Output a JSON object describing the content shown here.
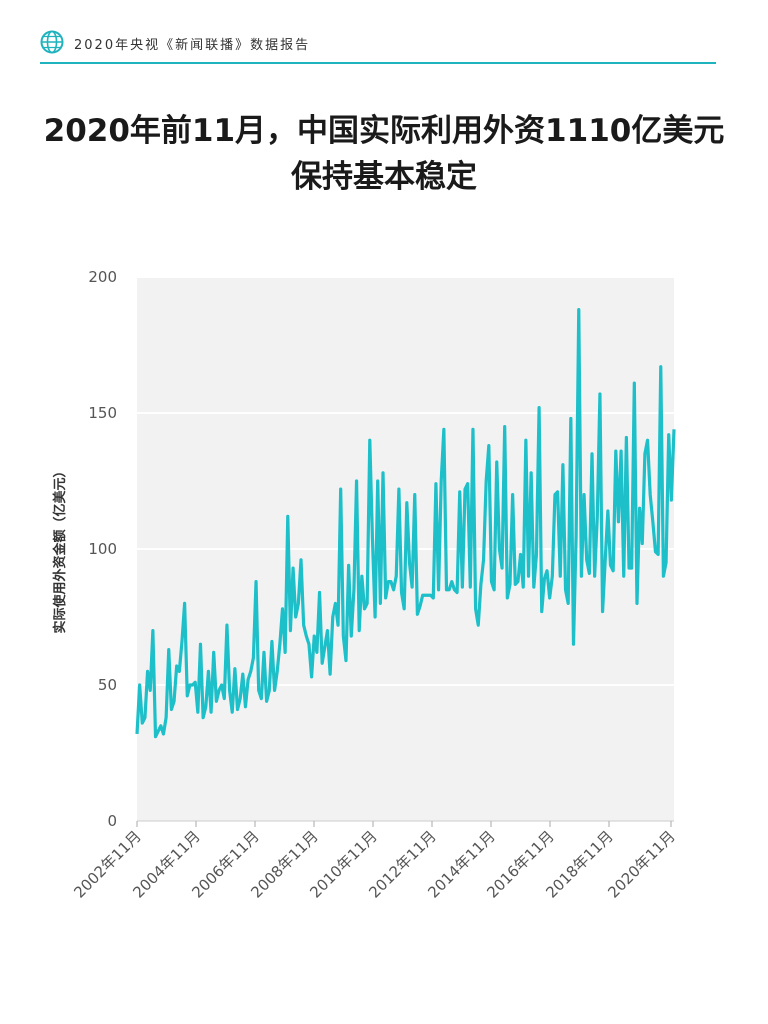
{
  "header": {
    "brand": "2020年央视《新闻联播》数据报告",
    "logo_icon": "globe-icon",
    "accent": "#1fb3be"
  },
  "title": {
    "line1": "2020年前11月，中国实际利用外资1110亿美元",
    "line2": "保持基本稳定"
  },
  "chart_data": {
    "type": "line",
    "ylabel": "实际使用外资金额（亿美元）",
    "ylim": [
      0,
      200
    ],
    "yticks": [
      0,
      50,
      100,
      150,
      200
    ],
    "xticks": [
      "2002年11月",
      "2004年11月",
      "2006年11月",
      "2008年11月",
      "2010年11月",
      "2012年11月",
      "2014年11月",
      "2016年11月",
      "2018年11月",
      "2020年11月"
    ],
    "grid": true,
    "line_color": "#1dbfc9",
    "plot_background": "#f2f2f2",
    "x_start": "2002年11月",
    "values": [
      32,
      50,
      36,
      38,
      55,
      48,
      70,
      31,
      33,
      35,
      32,
      38,
      63,
      41,
      44,
      57,
      55,
      66,
      80,
      46,
      50,
      50,
      51,
      40,
      65,
      38,
      42,
      55,
      40,
      62,
      44,
      48,
      50,
      45,
      72,
      48,
      40,
      56,
      41,
      45,
      54,
      42,
      52,
      55,
      60,
      88,
      48,
      45,
      62,
      44,
      48,
      66,
      48,
      55,
      65,
      78,
      62,
      112,
      70,
      93,
      75,
      80,
      96,
      72,
      68,
      65,
      53,
      68,
      62,
      84,
      58,
      64,
      70,
      54,
      75,
      80,
      72,
      122,
      68,
      59,
      94,
      68,
      85,
      125,
      70,
      90,
      78,
      80,
      140,
      104,
      75,
      125,
      80,
      128,
      82,
      88,
      88,
      85,
      90,
      122,
      84,
      78,
      117,
      95,
      86,
      120,
      76,
      79,
      83,
      83,
      83,
      83,
      82,
      124,
      85,
      125,
      144,
      85,
      85,
      88,
      85,
      84,
      121,
      86,
      122,
      124,
      86,
      144,
      78,
      72,
      87,
      96,
      125,
      138,
      88,
      85,
      132,
      100,
      93,
      145,
      82,
      87,
      120,
      87,
      88,
      98,
      86,
      140,
      90,
      128,
      86,
      98,
      152,
      77,
      89,
      92,
      82,
      90,
      120,
      121,
      90,
      131,
      85,
      80,
      148,
      65,
      105,
      188,
      90,
      120,
      96,
      91,
      135,
      90,
      112,
      157,
      77,
      96,
      114,
      94,
      92,
      136,
      110,
      136,
      90,
      141,
      93,
      93,
      161,
      80,
      115,
      102,
      135,
      140,
      120,
      110,
      99,
      98,
      167,
      90,
      95,
      142,
      118,
      144
    ]
  }
}
